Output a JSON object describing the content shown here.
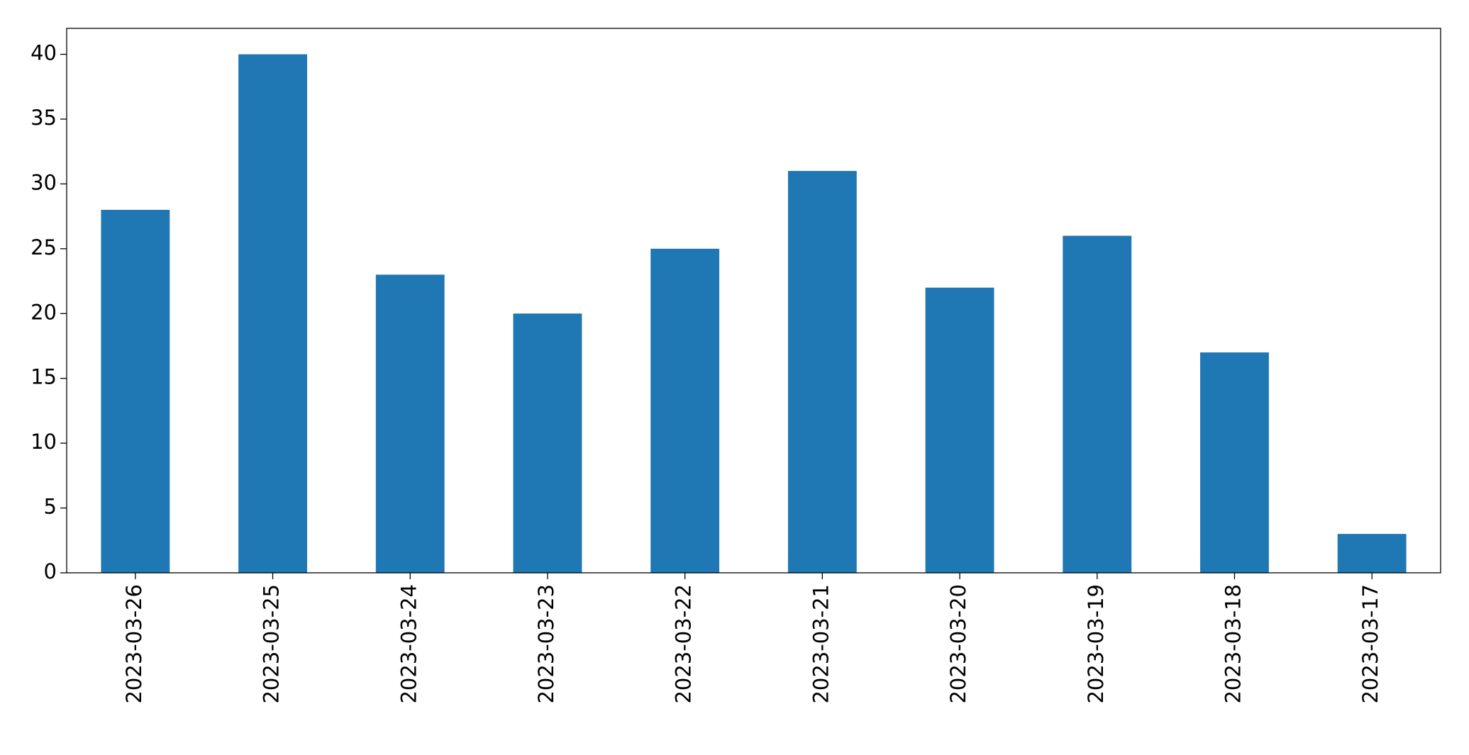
{
  "chart_data": {
    "type": "bar",
    "categories": [
      "2023-03-26",
      "2023-03-25",
      "2023-03-24",
      "2023-03-23",
      "2023-03-22",
      "2023-03-21",
      "2023-03-20",
      "2023-03-19",
      "2023-03-18",
      "2023-03-17"
    ],
    "values": [
      28,
      40,
      23,
      20,
      25,
      31,
      22,
      26,
      17,
      3
    ],
    "color": "#1f77b4",
    "ylim": [
      0,
      42
    ],
    "yticks": [
      0,
      5,
      10,
      15,
      20,
      25,
      30,
      35,
      40
    ],
    "grid": false
  }
}
